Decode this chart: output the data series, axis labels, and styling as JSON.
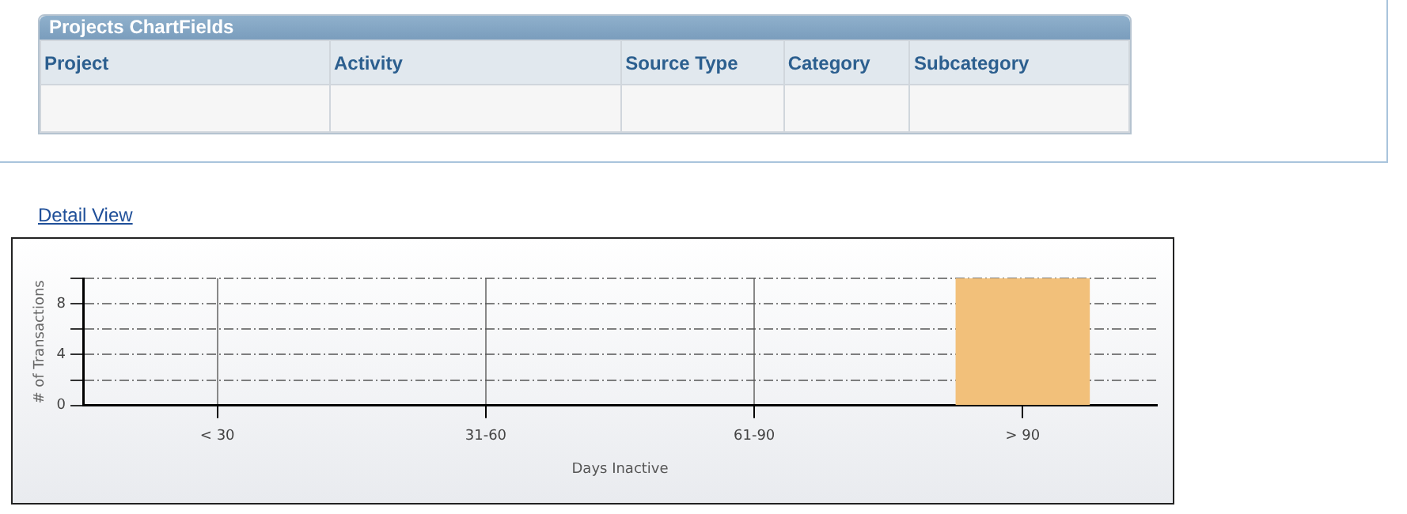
{
  "chart_data": {
    "type": "bar",
    "xlabel": "Days Inactive",
    "ylabel": "# of Transactions",
    "categories": [
      "< 30",
      "31-60",
      "61-90",
      "> 90"
    ],
    "values": [
      0,
      0,
      0,
      10
    ],
    "color": "#f2c07a",
    "ylim": [
      0,
      10
    ],
    "yticks": [
      0,
      {
        "value": 2,
        "label": null
      },
      4,
      {
        "value": 6,
        "label": null
      },
      8,
      {
        "value": 10,
        "label": null
      }
    ],
    "grid": true,
    "legend": false,
    "annotations": [
      "Projects ChartFields",
      "Project",
      "Activity",
      "Source Type",
      "Category",
      "Subcategory",
      "Detail View"
    ]
  }
}
